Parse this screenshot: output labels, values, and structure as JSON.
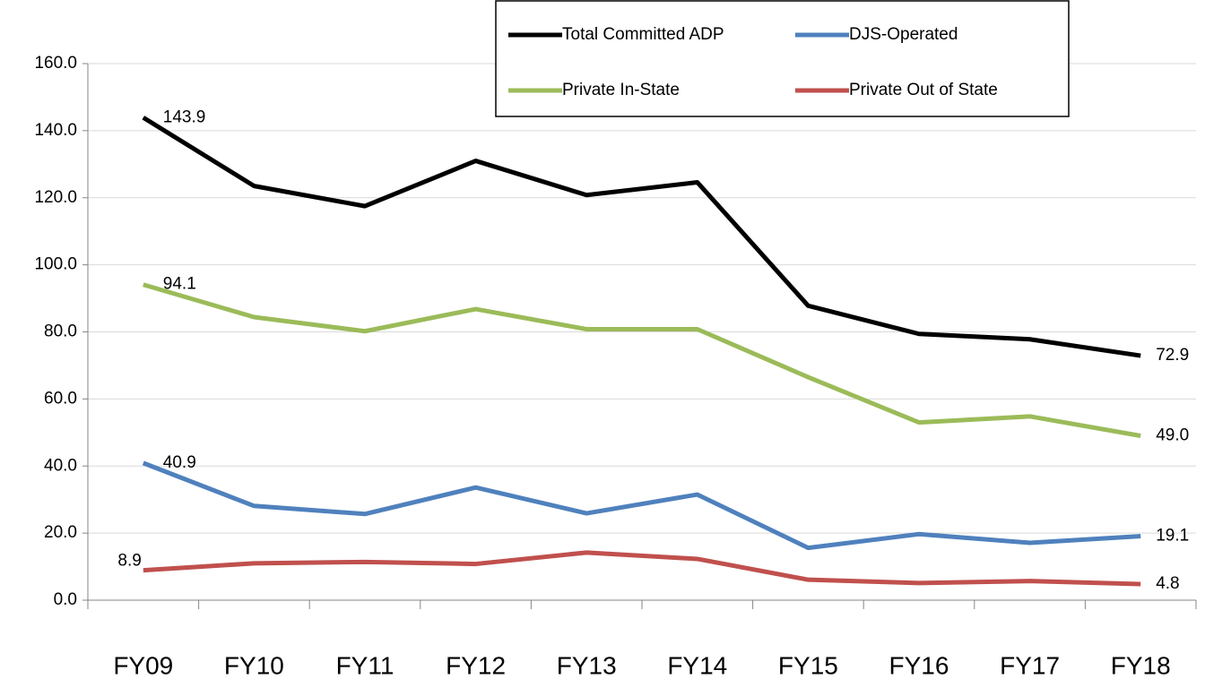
{
  "chart_data": {
    "type": "line",
    "categories": [
      "FY09",
      "FY10",
      "FY11",
      "FY12",
      "FY13",
      "FY14",
      "FY15",
      "FY16",
      "FY17",
      "FY18"
    ],
    "series": [
      {
        "name": "Total Committed ADP",
        "color": "#000000",
        "values": [
          143.9,
          123.5,
          117.5,
          131.0,
          120.8,
          124.6,
          87.8,
          79.4,
          77.8,
          72.9
        ],
        "value_labels": [
          "143.9",
          null,
          null,
          null,
          null,
          null,
          null,
          null,
          null,
          "72.9"
        ]
      },
      {
        "name": "DJS-Operated",
        "color": "#4f81bd",
        "values": [
          40.9,
          28.1,
          25.7,
          33.6,
          25.9,
          31.5,
          15.6,
          19.7,
          17.1,
          19.1
        ],
        "value_labels": [
          "40.9",
          null,
          null,
          null,
          null,
          null,
          null,
          null,
          null,
          "19.1"
        ]
      },
      {
        "name": "Private In-State",
        "color": "#9bbb59",
        "values": [
          94.1,
          84.4,
          80.2,
          86.8,
          80.8,
          80.8,
          66.5,
          53.0,
          54.8,
          49.0
        ],
        "value_labels": [
          "94.1",
          null,
          null,
          null,
          null,
          null,
          null,
          null,
          null,
          "49.0"
        ]
      },
      {
        "name": "Private Out of State",
        "color": "#c0504d",
        "values": [
          8.9,
          11.0,
          11.4,
          10.8,
          14.2,
          12.3,
          6.1,
          5.1,
          5.7,
          4.8
        ],
        "value_labels": [
          "8.9",
          null,
          null,
          null,
          null,
          null,
          null,
          null,
          null,
          "4.8"
        ]
      }
    ],
    "ylim": [
      0,
      160
    ],
    "yticks": [
      {
        "value": 0,
        "label": "0.0"
      },
      {
        "value": 20,
        "label": "20.0"
      },
      {
        "value": 40,
        "label": "40.0"
      },
      {
        "value": 60,
        "label": "60.0"
      },
      {
        "value": 80,
        "label": "80.0"
      },
      {
        "value": 100,
        "label": "100.0"
      },
      {
        "value": 120,
        "label": "120.0"
      },
      {
        "value": 140,
        "label": "140.0"
      },
      {
        "value": 160,
        "label": "160.0"
      }
    ],
    "grid": true,
    "legend": "top-right"
  }
}
